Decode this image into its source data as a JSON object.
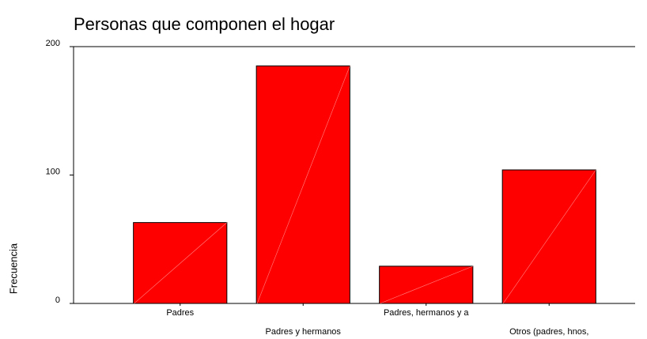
{
  "chart_data": {
    "type": "bar",
    "title": "Personas que componen el hogar",
    "y_label": "Frecuencia",
    "categories": [
      "Padres",
      "Padres y hermanos",
      "Padres, hermanos y a",
      "Otros (padres, hnos,"
    ],
    "values": [
      63,
      185,
      29,
      104
    ],
    "color": "#ff0000",
    "ylim": [
      0,
      200
    ],
    "yticks": [
      0,
      100,
      200
    ],
    "grid": false
  }
}
